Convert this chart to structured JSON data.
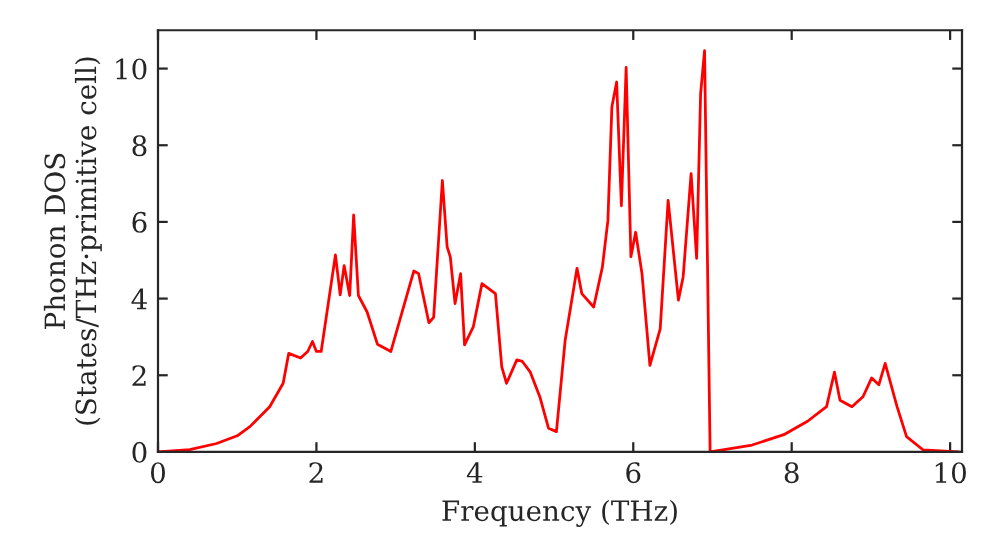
{
  "chart_data": {
    "type": "line",
    "xlabel": "Frequency (THz)",
    "ylabel": "Phonon DOS\n(States/THz·primitive cell)",
    "xlim": [
      0,
      10.15
    ],
    "ylim": [
      0,
      11
    ],
    "xticks": [
      0,
      2,
      4,
      6,
      8,
      10
    ],
    "yticks": [
      0,
      2,
      4,
      6,
      8,
      10
    ],
    "grid": false,
    "legend": false,
    "marker": "none",
    "line_style": "solid",
    "series": [
      {
        "color": "#ff0000",
        "x": [
          0.0,
          0.4,
          0.74,
          1.0,
          1.16,
          1.41,
          1.58,
          1.65,
          1.8,
          1.89,
          1.95,
          2.0,
          2.06,
          2.24,
          2.3,
          2.35,
          2.42,
          2.47,
          2.53,
          2.64,
          2.77,
          2.94,
          3.23,
          3.29,
          3.42,
          3.48,
          3.59,
          3.65,
          3.69,
          3.75,
          3.82,
          3.87,
          3.98,
          4.09,
          4.26,
          4.34,
          4.4,
          4.53,
          4.6,
          4.7,
          4.82,
          4.93,
          5.03,
          5.14,
          5.29,
          5.35,
          5.5,
          5.61,
          5.68,
          5.73,
          5.79,
          5.85,
          5.91,
          5.97,
          6.03,
          6.11,
          6.21,
          6.34,
          6.44,
          6.57,
          6.63,
          6.73,
          6.8,
          6.85,
          6.9,
          6.97,
          7.5,
          7.9,
          8.2,
          8.44,
          8.54,
          8.61,
          8.76,
          8.9,
          9.01,
          9.1,
          9.18,
          9.33,
          9.45,
          9.66,
          10.1
        ],
        "values": [
          0.0,
          0.06,
          0.22,
          0.42,
          0.66,
          1.18,
          1.79,
          2.57,
          2.45,
          2.62,
          2.88,
          2.62,
          2.62,
          5.14,
          4.1,
          4.86,
          4.08,
          6.18,
          4.08,
          3.65,
          2.81,
          2.62,
          4.72,
          4.65,
          3.37,
          3.51,
          7.08,
          5.35,
          5.09,
          3.87,
          4.65,
          2.79,
          3.26,
          4.39,
          4.13,
          2.22,
          1.79,
          2.4,
          2.36,
          2.08,
          1.44,
          0.62,
          0.53,
          2.91,
          4.79,
          4.13,
          3.78,
          4.82,
          6.04,
          9.0,
          9.65,
          6.42,
          10.03,
          5.09,
          5.73,
          4.65,
          2.26,
          3.21,
          6.56,
          3.96,
          4.57,
          7.26,
          5.05,
          9.34,
          10.47,
          0.0,
          0.18,
          0.45,
          0.8,
          1.18,
          2.08,
          1.35,
          1.18,
          1.44,
          1.93,
          1.75,
          2.31,
          1.18,
          0.4,
          0.05,
          0.0
        ]
      }
    ]
  }
}
